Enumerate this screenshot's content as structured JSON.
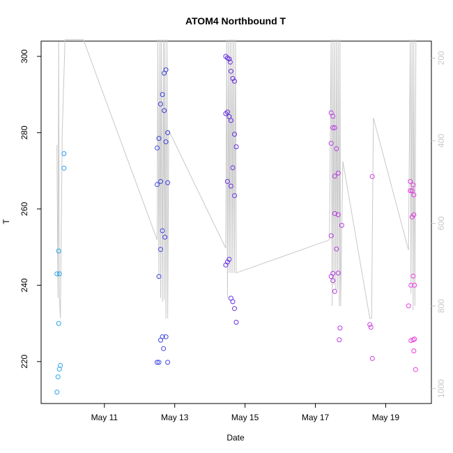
{
  "chart_data": {
    "type": "scatter",
    "title": "ATOM4 Northbound T",
    "xlabel": "Date",
    "ylabel": "T",
    "x_ticks": [
      "May 11",
      "May 13",
      "May 15",
      "May 17",
      "May 19"
    ],
    "x_tick_days": [
      11,
      13,
      15,
      17,
      19
    ],
    "xlim_days": [
      9.2,
      20.3
    ],
    "ylim": [
      209,
      304
    ],
    "y_ticks": [
      220,
      240,
      260,
      280,
      300
    ],
    "y2_ticks": [
      200,
      400,
      600,
      800,
      1000
    ],
    "y2lim": [
      1036,
      159
    ],
    "grid": false,
    "color_scale": [
      "#29b6e8",
      "#2f5de6",
      "#4a2fdc",
      "#8a2ee6",
      "#c43ee0",
      "#f03ce0"
    ],
    "points": [
      {
        "day": 9.65,
        "T": 243
      },
      {
        "day": 9.65,
        "T": 212
      },
      {
        "day": 9.68,
        "T": 216
      },
      {
        "day": 9.7,
        "T": 249
      },
      {
        "day": 9.7,
        "T": 230
      },
      {
        "day": 9.72,
        "T": 243
      },
      {
        "day": 9.72,
        "T": 218
      },
      {
        "day": 9.75,
        "T": 219
      },
      {
        "day": 9.85,
        "T": 274.5
      },
      {
        "day": 9.85,
        "T": 270.7
      },
      {
        "day": 12.5,
        "T": 276
      },
      {
        "day": 12.5,
        "T": 266.4
      },
      {
        "day": 12.5,
        "T": 219.8
      },
      {
        "day": 12.55,
        "T": 278.5
      },
      {
        "day": 12.55,
        "T": 242.3
      },
      {
        "day": 12.55,
        "T": 219.8
      },
      {
        "day": 12.6,
        "T": 287.5
      },
      {
        "day": 12.6,
        "T": 267.2
      },
      {
        "day": 12.6,
        "T": 249.4
      },
      {
        "day": 12.6,
        "T": 225.6
      },
      {
        "day": 12.65,
        "T": 290
      },
      {
        "day": 12.65,
        "T": 254.3
      },
      {
        "day": 12.65,
        "T": 226.5
      },
      {
        "day": 12.68,
        "T": 223.4
      },
      {
        "day": 12.7,
        "T": 295.6
      },
      {
        "day": 12.7,
        "T": 285.8
      },
      {
        "day": 12.72,
        "T": 252.6
      },
      {
        "day": 12.75,
        "T": 296.5
      },
      {
        "day": 12.75,
        "T": 277.6
      },
      {
        "day": 12.75,
        "T": 226.5
      },
      {
        "day": 12.8,
        "T": 280
      },
      {
        "day": 12.8,
        "T": 266.9
      },
      {
        "day": 12.8,
        "T": 219.8
      },
      {
        "day": 14.45,
        "T": 300
      },
      {
        "day": 14.45,
        "T": 285
      },
      {
        "day": 14.45,
        "T": 245.3
      },
      {
        "day": 14.5,
        "T": 299.6
      },
      {
        "day": 14.5,
        "T": 285.4
      },
      {
        "day": 14.5,
        "T": 267.2
      },
      {
        "day": 14.5,
        "T": 246.1
      },
      {
        "day": 14.55,
        "T": 299.3
      },
      {
        "day": 14.55,
        "T": 284.2
      },
      {
        "day": 14.55,
        "T": 246.8
      },
      {
        "day": 14.58,
        "T": 298.5
      },
      {
        "day": 14.6,
        "T": 296.1
      },
      {
        "day": 14.6,
        "T": 283.2
      },
      {
        "day": 14.6,
        "T": 266
      },
      {
        "day": 14.6,
        "T": 236.6
      },
      {
        "day": 14.65,
        "T": 294.2
      },
      {
        "day": 14.65,
        "T": 270.8
      },
      {
        "day": 14.65,
        "T": 235.7
      },
      {
        "day": 14.7,
        "T": 293.5
      },
      {
        "day": 14.7,
        "T": 279.6
      },
      {
        "day": 14.7,
        "T": 263.5
      },
      {
        "day": 14.7,
        "T": 233.9
      },
      {
        "day": 14.75,
        "T": 276.3
      },
      {
        "day": 14.75,
        "T": 230.3
      },
      {
        "day": 17.45,
        "T": 285.2
      },
      {
        "day": 17.45,
        "T": 277.2
      },
      {
        "day": 17.45,
        "T": 253
      },
      {
        "day": 17.45,
        "T": 242.3
      },
      {
        "day": 17.5,
        "T": 284.3
      },
      {
        "day": 17.5,
        "T": 281.3
      },
      {
        "day": 17.5,
        "T": 243.1
      },
      {
        "day": 17.5,
        "T": 241.2
      },
      {
        "day": 17.55,
        "T": 281.3
      },
      {
        "day": 17.55,
        "T": 268.6
      },
      {
        "day": 17.55,
        "T": 258.8
      },
      {
        "day": 17.55,
        "T": 238.4
      },
      {
        "day": 17.6,
        "T": 275.8
      },
      {
        "day": 17.6,
        "T": 249.5
      },
      {
        "day": 17.65,
        "T": 269.4
      },
      {
        "day": 17.65,
        "T": 258.5
      },
      {
        "day": 17.65,
        "T": 243.2
      },
      {
        "day": 17.68,
        "T": 225.7
      },
      {
        "day": 17.7,
        "T": 228.8
      },
      {
        "day": 17.75,
        "T": 255.7
      },
      {
        "day": 18.55,
        "T": 229.7
      },
      {
        "day": 18.58,
        "T": 229
      },
      {
        "day": 18.62,
        "T": 220.8
      },
      {
        "day": 18.62,
        "T": 268.5
      },
      {
        "day": 19.65,
        "T": 234.6
      },
      {
        "day": 19.7,
        "T": 267.2
      },
      {
        "day": 19.7,
        "T": 264.8
      },
      {
        "day": 19.72,
        "T": 240
      },
      {
        "day": 19.72,
        "T": 225.5
      },
      {
        "day": 19.75,
        "T": 264.8
      },
      {
        "day": 19.75,
        "T": 257.9
      },
      {
        "day": 19.78,
        "T": 266.3
      },
      {
        "day": 19.78,
        "T": 242.4
      },
      {
        "day": 19.78,
        "T": 225.7
      },
      {
        "day": 19.8,
        "T": 263.7
      },
      {
        "day": 19.8,
        "T": 258.5
      },
      {
        "day": 19.8,
        "T": 222.8
      },
      {
        "day": 19.82,
        "T": 225.9
      },
      {
        "day": 19.82,
        "T": 240
      },
      {
        "day": 19.85,
        "T": 217.9
      }
    ],
    "series": [
      {
        "type": "line",
        "axis": "right",
        "color": "#c8c8c8",
        "x": [
          9.65,
          9.68,
          9.7,
          9.72,
          9.75,
          9.8,
          9.88,
          10.4,
          12.5,
          12.52,
          12.55,
          12.58,
          12.6,
          12.62,
          12.65,
          12.68,
          12.7,
          12.72,
          12.75,
          12.78,
          12.8,
          12.83,
          14.45,
          14.48,
          14.5,
          14.53,
          14.55,
          14.58,
          14.6,
          14.63,
          14.65,
          14.68,
          14.7,
          14.73,
          14.75,
          17.4,
          17.45,
          17.48,
          17.5,
          17.53,
          17.55,
          17.58,
          17.6,
          17.63,
          17.65,
          17.68,
          17.7,
          17.72,
          17.78,
          18.55,
          18.6,
          18.65,
          19.65,
          19.7,
          19.72,
          19.75,
          19.78,
          19.8,
          19.83,
          19.86
        ],
        "y": [
          410,
          780,
          160,
          780,
          830,
          380,
          155,
          155,
          640,
          155,
          735,
          155,
          780,
          155,
          790,
          155,
          785,
          155,
          830,
          155,
          830,
          375,
          660,
          155,
          780,
          155,
          720,
          155,
          720,
          155,
          720,
          155,
          720,
          155,
          720,
          640,
          155,
          800,
          155,
          750,
          155,
          760,
          155,
          760,
          155,
          800,
          155,
          800,
          450,
          830,
          830,
          345,
          665,
          155,
          770,
          155,
          810,
          155,
          800,
          155
        ]
      }
    ]
  }
}
